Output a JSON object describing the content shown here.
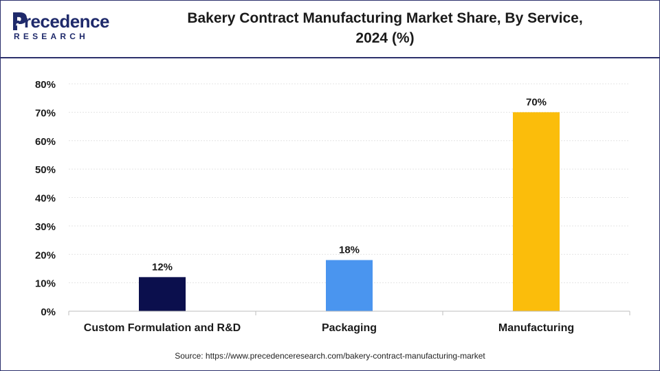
{
  "header": {
    "logo_text": "Precedence",
    "logo_sub": "RESEARCH",
    "title_line1": "Bakery Contract Manufacturing Market Share, By Service,",
    "title_line2": "2024 (%)"
  },
  "chart_data": {
    "type": "bar",
    "title": "Bakery Contract Manufacturing Market Share, By Service, 2024 (%)",
    "categories": [
      "Custom Formulation and R&D",
      "Packaging",
      "Manufacturing"
    ],
    "values": [
      12,
      18,
      70
    ],
    "value_labels": [
      "12%",
      "18%",
      "70%"
    ],
    "colors": [
      "#0b0f4d",
      "#4a95ef",
      "#fbbd0b"
    ],
    "yticks": [
      0,
      10,
      20,
      30,
      40,
      50,
      60,
      70,
      80
    ],
    "ytick_labels": [
      "0%",
      "10%",
      "20%",
      "30%",
      "40%",
      "50%",
      "60%",
      "70%",
      "80%"
    ],
    "ylim": [
      0,
      80
    ],
    "xlabel": "",
    "ylabel": "",
    "grid": true
  },
  "footer": {
    "source": "Source: https://www.precedenceresearch.com/bakery-contract-manufacturing-market"
  }
}
